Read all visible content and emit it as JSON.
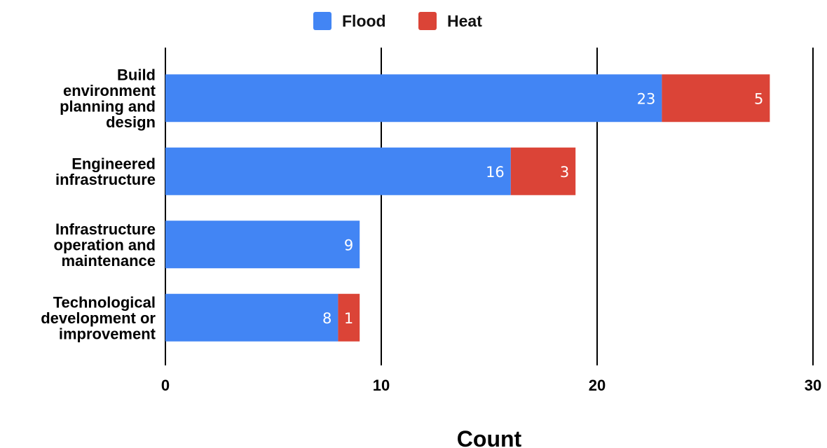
{
  "chart_data": {
    "type": "bar",
    "orientation": "horizontal",
    "stacked": true,
    "categories": [
      [
        "Build",
        "environment",
        "planning and",
        "design"
      ],
      [
        "Engineered",
        "infrastructure"
      ],
      [
        "Infrastructure",
        "operation and",
        "maintenance"
      ],
      [
        "Technological",
        "development or",
        "improvement"
      ]
    ],
    "series": [
      {
        "name": "Flood",
        "color": "#4285F4",
        "values": [
          23,
          16,
          9,
          8
        ]
      },
      {
        "name": "Heat",
        "color": "#DB4437",
        "values": [
          5,
          3,
          0,
          1
        ]
      }
    ],
    "xlabel": "Count",
    "ylabel": "",
    "xlim": [
      0,
      30
    ],
    "xticks": [
      0,
      10,
      20,
      30
    ],
    "grid": true,
    "legend_position": "top-center"
  }
}
